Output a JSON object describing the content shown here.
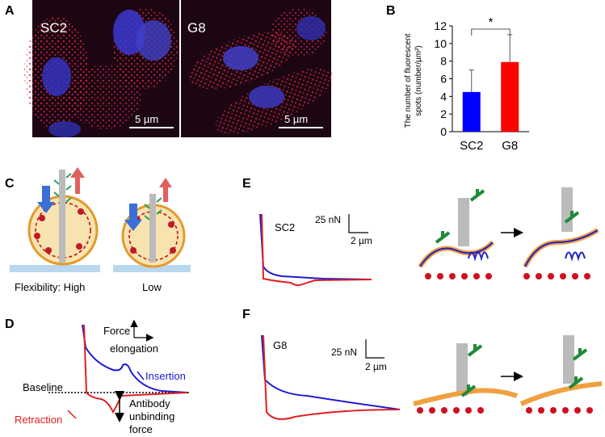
{
  "panel_labels": [
    "A",
    "B",
    "C",
    "D",
    "E",
    "F"
  ],
  "panel_a": {
    "images": [
      {
        "label": "SC2",
        "scale": "5 µm"
      },
      {
        "label": "G8",
        "scale": "5 µm"
      }
    ]
  },
  "chart_data": {
    "type": "bar",
    "ylabel": [
      "The number of fluorescent",
      "spots (number/µm²)"
    ],
    "categories": [
      "SC2",
      "G8"
    ],
    "values": [
      4.5,
      7.9
    ],
    "errors": [
      2.5,
      3.1
    ],
    "colors": [
      "#0000ff",
      "#ff0000"
    ],
    "ylim": [
      0,
      12
    ],
    "yticks": [
      0,
      2,
      4,
      6,
      8,
      10,
      12
    ],
    "significance": "*"
  },
  "panel_c": {
    "labels": [
      "Flexibility: High",
      "Low"
    ]
  },
  "panel_d": {
    "force": "Force",
    "elongation": "elongation",
    "insertion": "Insertion",
    "baseline": "Baseline",
    "retraction": "Retraction",
    "unbinding": [
      "Antibody",
      "unbinding",
      "force"
    ]
  },
  "panel_e": {
    "label": "SC2",
    "force_scale": "25 nN",
    "distance_scale": "2 µm"
  },
  "panel_f": {
    "label": "G8",
    "force_scale": "25 nN",
    "distance_scale": "2 µm"
  }
}
